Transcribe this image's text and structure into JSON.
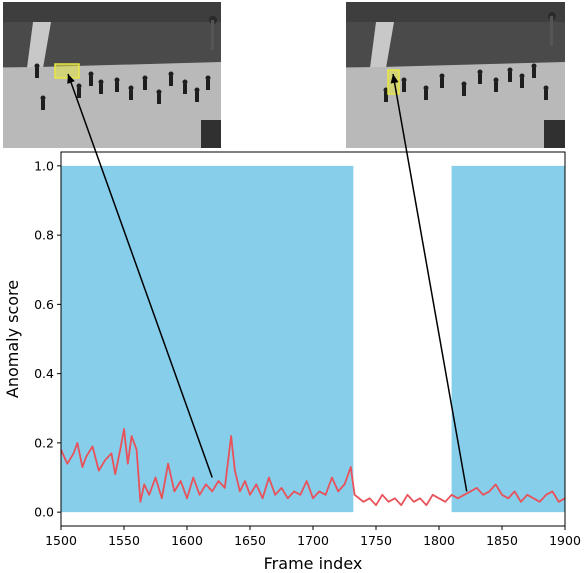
{
  "chart_data": {
    "type": "line",
    "title": "",
    "xlabel": "Frame index",
    "ylabel": "Anomaly score",
    "xlim": [
      1500,
      1900
    ],
    "ylim": [
      -0.04,
      1.04
    ],
    "x_ticks": [
      "1500",
      "1550",
      "1600",
      "1650",
      "1700",
      "1750",
      "1800",
      "1850",
      "1900"
    ],
    "y_ticks": [
      "0.0",
      "0.2",
      "0.4",
      "0.6",
      "0.8",
      "1.0"
    ],
    "grid": false,
    "shaded_regions": [
      {
        "x_start": 1500,
        "x_end": 1732,
        "y_start": 0.0,
        "y_end": 1.0,
        "color": "#87ceeb"
      },
      {
        "x_start": 1810,
        "x_end": 1900,
        "y_start": 0.0,
        "y_end": 1.0,
        "color": "#87ceeb"
      }
    ],
    "series": [
      {
        "color": "#e8525a",
        "x": [
          1500,
          1505,
          1510,
          1513,
          1517,
          1520,
          1525,
          1530,
          1535,
          1540,
          1543,
          1547,
          1550,
          1553,
          1556,
          1560,
          1563,
          1566,
          1570,
          1575,
          1580,
          1585,
          1590,
          1595,
          1600,
          1605,
          1610,
          1615,
          1620,
          1625,
          1630,
          1633,
          1635,
          1638,
          1642,
          1646,
          1650,
          1655,
          1660,
          1665,
          1670,
          1675,
          1680,
          1685,
          1690,
          1695,
          1700,
          1705,
          1710,
          1715,
          1720,
          1725,
          1730,
          1733,
          1740,
          1745,
          1750,
          1755,
          1760,
          1765,
          1770,
          1775,
          1780,
          1785,
          1790,
          1795,
          1800,
          1805,
          1810,
          1815,
          1820,
          1825,
          1830,
          1835,
          1840,
          1845,
          1850,
          1855,
          1860,
          1865,
          1870,
          1875,
          1880,
          1885,
          1890,
          1895,
          1900
        ],
        "y": [
          0.18,
          0.14,
          0.17,
          0.2,
          0.13,
          0.16,
          0.19,
          0.12,
          0.15,
          0.17,
          0.11,
          0.18,
          0.24,
          0.14,
          0.22,
          0.18,
          0.03,
          0.08,
          0.05,
          0.1,
          0.04,
          0.14,
          0.06,
          0.09,
          0.04,
          0.1,
          0.05,
          0.08,
          0.06,
          0.09,
          0.07,
          0.16,
          0.22,
          0.12,
          0.06,
          0.09,
          0.05,
          0.08,
          0.04,
          0.1,
          0.05,
          0.07,
          0.04,
          0.06,
          0.05,
          0.09,
          0.04,
          0.06,
          0.05,
          0.1,
          0.06,
          0.08,
          0.13,
          0.05,
          0.03,
          0.04,
          0.02,
          0.05,
          0.03,
          0.04,
          0.02,
          0.05,
          0.03,
          0.04,
          0.02,
          0.05,
          0.04,
          0.03,
          0.05,
          0.04,
          0.05,
          0.06,
          0.07,
          0.05,
          0.06,
          0.08,
          0.05,
          0.04,
          0.06,
          0.03,
          0.05,
          0.04,
          0.03,
          0.05,
          0.06,
          0.03,
          0.04
        ]
      }
    ],
    "annotations": [
      {
        "type": "arrow",
        "from_frame": "left",
        "to_x": 1620,
        "to_y": 0.1
      },
      {
        "type": "arrow",
        "from_frame": "right",
        "to_x": 1822,
        "to_y": 0.06
      }
    ]
  },
  "frames": [
    {
      "name": "left",
      "highlight_color": "#e8e843"
    },
    {
      "name": "right",
      "highlight_color": "#e8e843"
    }
  ]
}
